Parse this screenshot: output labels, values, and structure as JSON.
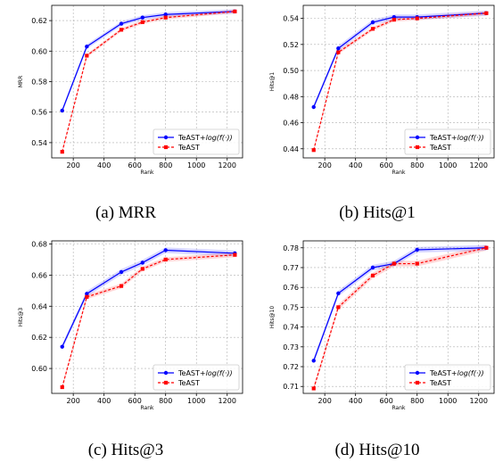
{
  "chart_data": [
    {
      "type": "line",
      "caption": "(a)  MRR",
      "ylabel": "MRR",
      "xlabel": "Rank",
      "x": [
        128,
        288,
        512,
        650,
        800,
        1250
      ],
      "xlim": [
        60,
        1300
      ],
      "ylim": [
        0.53,
        0.63
      ],
      "xticks": [
        200,
        400,
        600,
        800,
        1000,
        1200
      ],
      "yticks": [
        0.54,
        0.56,
        0.58,
        0.6,
        0.62
      ],
      "yticklabels": [
        "0.54",
        "0.56",
        "0.58",
        "0.60",
        "0.62"
      ],
      "grid": true,
      "legend": "bottom-right",
      "series": [
        {
          "name": "TeAST+log(f(·))",
          "legend_prefix": "TeAST+",
          "legend_italic": "log(f(·))",
          "color": "#0000ff",
          "style": "solid",
          "marker": "circle",
          "values": [
            0.561,
            0.603,
            0.618,
            0.622,
            0.624,
            0.626
          ],
          "band": 0.0015
        },
        {
          "name": "TeAST",
          "legend_prefix": "TeAST",
          "legend_italic": "",
          "color": "#ff0000",
          "style": "dashed",
          "marker": "square",
          "values": [
            0.534,
            0.597,
            0.614,
            0.619,
            0.622,
            0.626
          ],
          "band": 0.0012
        }
      ]
    },
    {
      "type": "line",
      "caption": "(b)  Hits@1",
      "ylabel": "Hits@1",
      "xlabel": "Rank",
      "x": [
        128,
        288,
        512,
        650,
        800,
        1250
      ],
      "xlim": [
        60,
        1300
      ],
      "ylim": [
        0.433,
        0.55
      ],
      "xticks": [
        200,
        400,
        600,
        800,
        1000,
        1200
      ],
      "yticks": [
        0.44,
        0.46,
        0.48,
        0.5,
        0.52,
        0.54
      ],
      "yticklabels": [
        "0.44",
        "0.46",
        "0.48",
        "0.50",
        "0.52",
        "0.54"
      ],
      "grid": true,
      "legend": "bottom-right",
      "series": [
        {
          "name": "TeAST+log(f(·))",
          "legend_prefix": "TeAST+",
          "legend_italic": "log(f(·))",
          "color": "#0000ff",
          "style": "solid",
          "marker": "circle",
          "values": [
            0.472,
            0.517,
            0.537,
            0.541,
            0.541,
            0.544
          ],
          "band": 0.002
        },
        {
          "name": "TeAST",
          "legend_prefix": "TeAST",
          "legend_italic": "",
          "color": "#ff0000",
          "style": "dashed",
          "marker": "square",
          "values": [
            0.439,
            0.514,
            0.532,
            0.539,
            0.54,
            0.544
          ],
          "band": 0.0015
        }
      ]
    },
    {
      "type": "line",
      "caption": "(c)  Hits@3",
      "ylabel": "Hits@3",
      "xlabel": "Rank",
      "x": [
        128,
        288,
        512,
        650,
        800,
        1250
      ],
      "xlim": [
        60,
        1300
      ],
      "ylim": [
        0.584,
        0.682
      ],
      "xticks": [
        200,
        400,
        600,
        800,
        1000,
        1200
      ],
      "yticks": [
        0.6,
        0.62,
        0.64,
        0.66,
        0.68
      ],
      "yticklabels": [
        "0.60",
        "0.62",
        "0.64",
        "0.66",
        "0.68"
      ],
      "grid": true,
      "legend": "bottom-right",
      "series": [
        {
          "name": "TeAST+log(f(·))",
          "legend_prefix": "TeAST+",
          "legend_italic": "log(f(·))",
          "color": "#0000ff",
          "style": "solid",
          "marker": "circle",
          "values": [
            0.614,
            0.648,
            0.662,
            0.668,
            0.676,
            0.674
          ],
          "band": 0.0018
        },
        {
          "name": "TeAST",
          "legend_prefix": "TeAST",
          "legend_italic": "",
          "color": "#ff0000",
          "style": "dashed",
          "marker": "square",
          "values": [
            0.588,
            0.646,
            0.653,
            0.664,
            0.67,
            0.673
          ],
          "band": 0.0015
        }
      ]
    },
    {
      "type": "line",
      "caption": "(d)  Hits@10",
      "ylabel": "Hits@10",
      "xlabel": "Rank",
      "x": [
        128,
        288,
        512,
        650,
        800,
        1250
      ],
      "xlim": [
        60,
        1300
      ],
      "ylim": [
        0.7065,
        0.7835
      ],
      "xticks": [
        200,
        400,
        600,
        800,
        1000,
        1200
      ],
      "yticks": [
        0.71,
        0.72,
        0.73,
        0.74,
        0.75,
        0.76,
        0.77,
        0.78
      ],
      "yticklabels": [
        "0.71",
        "0.72",
        "0.73",
        "0.74",
        "0.75",
        "0.76",
        "0.77",
        "0.78"
      ],
      "grid": true,
      "legend": "bottom-right",
      "series": [
        {
          "name": "TeAST+log(f(·))",
          "legend_prefix": "TeAST+",
          "legend_italic": "log(f(·))",
          "color": "#0000ff",
          "style": "solid",
          "marker": "circle",
          "values": [
            0.723,
            0.757,
            0.77,
            0.772,
            0.779,
            0.78
          ],
          "band": 0.0014
        },
        {
          "name": "TeAST",
          "legend_prefix": "TeAST",
          "legend_italic": "",
          "color": "#ff0000",
          "style": "dashed",
          "marker": "square",
          "values": [
            0.709,
            0.75,
            0.766,
            0.772,
            0.772,
            0.78
          ],
          "band": 0.0014
        }
      ]
    }
  ]
}
